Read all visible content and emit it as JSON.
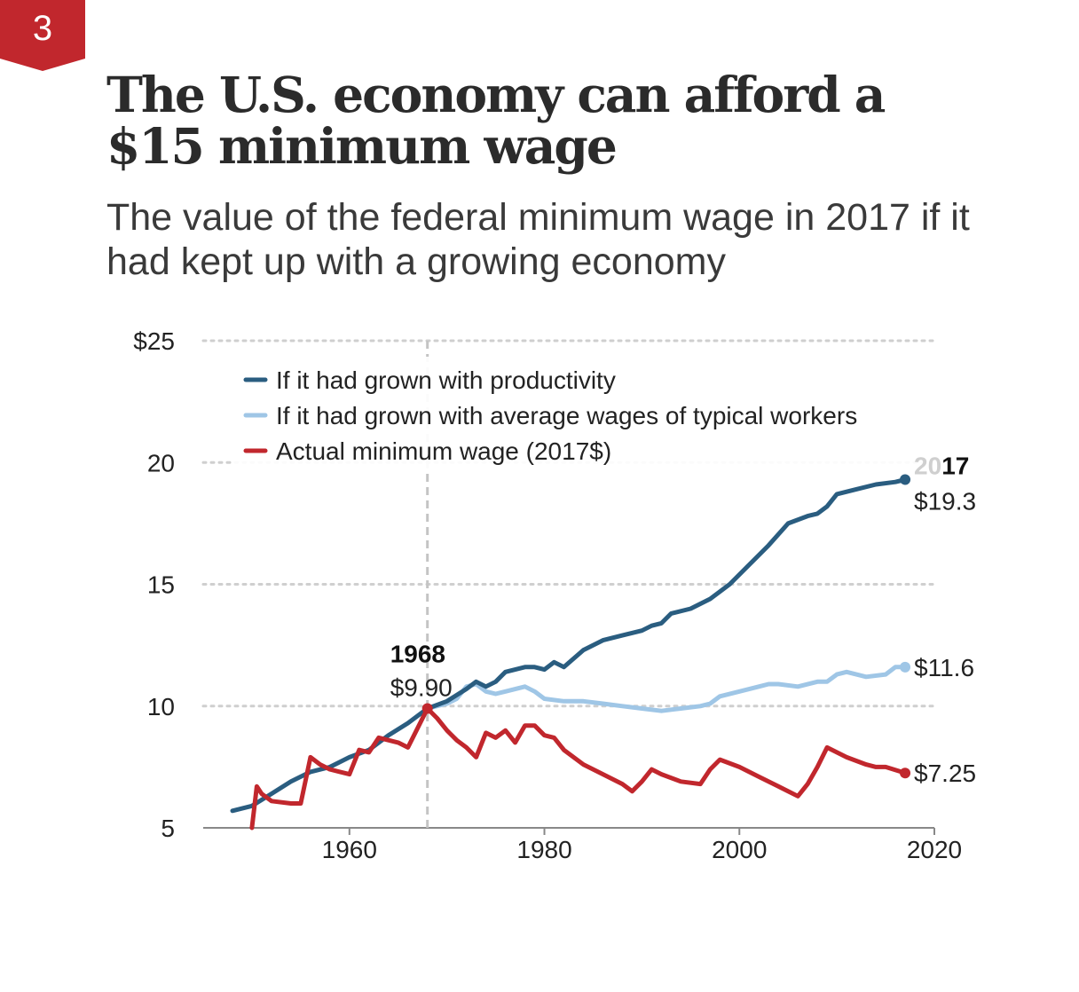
{
  "badge": {
    "number": "3",
    "color": "#c1272d"
  },
  "header": {
    "title": "The U.S. economy can afford a $15 minimum wage",
    "subtitle": "The value of the federal minimum wage in 2017 if it had kept up with a growing economy"
  },
  "chart_data": {
    "type": "line",
    "title": "The U.S. economy can afford a $15 minimum wage",
    "subtitle": "The value of the federal minimum wage in 2017 if it had kept up with a growing economy",
    "xlabel": "",
    "ylabel": "",
    "xlim": [
      1945,
      2020
    ],
    "ylim": [
      5,
      25
    ],
    "grid": "horizontal dotted",
    "legend_position": "top-left",
    "y_ticks": [
      {
        "value": 25,
        "label": "$25"
      },
      {
        "value": 20,
        "label": "20"
      },
      {
        "value": 15,
        "label": "15"
      },
      {
        "value": 10,
        "label": "10"
      },
      {
        "value": 5,
        "label": "5"
      }
    ],
    "x_ticks": [
      {
        "value": 1960,
        "label": "1960"
      },
      {
        "value": 1980,
        "label": "1980"
      },
      {
        "value": 2000,
        "label": "2000"
      },
      {
        "value": 2020,
        "label": "2020"
      }
    ],
    "series": [
      {
        "name": "If it had grown with productivity",
        "color": "#2a5d80",
        "end_label": "$19.3",
        "points": [
          [
            1948,
            5.7
          ],
          [
            1950,
            5.9
          ],
          [
            1952,
            6.4
          ],
          [
            1954,
            6.9
          ],
          [
            1956,
            7.3
          ],
          [
            1958,
            7.5
          ],
          [
            1960,
            7.9
          ],
          [
            1962,
            8.2
          ],
          [
            1964,
            8.8
          ],
          [
            1966,
            9.3
          ],
          [
            1968,
            9.9
          ],
          [
            1970,
            10.2
          ],
          [
            1972,
            10.7
          ],
          [
            1973,
            11.0
          ],
          [
            1974,
            10.8
          ],
          [
            1975,
            11.0
          ],
          [
            1976,
            11.4
          ],
          [
            1978,
            11.6
          ],
          [
            1979,
            11.6
          ],
          [
            1980,
            11.5
          ],
          [
            1981,
            11.8
          ],
          [
            1982,
            11.6
          ],
          [
            1984,
            12.3
          ],
          [
            1986,
            12.7
          ],
          [
            1988,
            12.9
          ],
          [
            1990,
            13.1
          ],
          [
            1991,
            13.3
          ],
          [
            1992,
            13.4
          ],
          [
            1993,
            13.8
          ],
          [
            1995,
            14.0
          ],
          [
            1997,
            14.4
          ],
          [
            1999,
            15.0
          ],
          [
            2001,
            15.8
          ],
          [
            2003,
            16.6
          ],
          [
            2005,
            17.5
          ],
          [
            2007,
            17.8
          ],
          [
            2008,
            17.9
          ],
          [
            2009,
            18.2
          ],
          [
            2010,
            18.7
          ],
          [
            2012,
            18.9
          ],
          [
            2014,
            19.1
          ],
          [
            2016,
            19.2
          ],
          [
            2017,
            19.3
          ]
        ]
      },
      {
        "name": "If it had grown with average wages of typical workers",
        "color": "#9fc6e6",
        "end_label": "$11.6",
        "points": [
          [
            1968,
            9.9
          ],
          [
            1970,
            10.1
          ],
          [
            1971,
            10.3
          ],
          [
            1972,
            10.8
          ],
          [
            1973,
            10.9
          ],
          [
            1974,
            10.6
          ],
          [
            1975,
            10.5
          ],
          [
            1976,
            10.6
          ],
          [
            1978,
            10.8
          ],
          [
            1979,
            10.6
          ],
          [
            1980,
            10.3
          ],
          [
            1982,
            10.2
          ],
          [
            1984,
            10.2
          ],
          [
            1986,
            10.1
          ],
          [
            1988,
            10.0
          ],
          [
            1990,
            9.9
          ],
          [
            1992,
            9.8
          ],
          [
            1994,
            9.9
          ],
          [
            1996,
            10.0
          ],
          [
            1997,
            10.1
          ],
          [
            1998,
            10.4
          ],
          [
            2000,
            10.6
          ],
          [
            2002,
            10.8
          ],
          [
            2003,
            10.9
          ],
          [
            2004,
            10.9
          ],
          [
            2006,
            10.8
          ],
          [
            2008,
            11.0
          ],
          [
            2009,
            11.0
          ],
          [
            2010,
            11.3
          ],
          [
            2011,
            11.4
          ],
          [
            2013,
            11.2
          ],
          [
            2015,
            11.3
          ],
          [
            2016,
            11.6
          ],
          [
            2017,
            11.6
          ]
        ]
      },
      {
        "name": "Actual minimum wage (2017$)",
        "color": "#c1272d",
        "end_label": "$7.25",
        "points": [
          [
            1950,
            5.0
          ],
          [
            1950.5,
            6.7
          ],
          [
            1951,
            6.4
          ],
          [
            1952,
            6.1
          ],
          [
            1954,
            6.0
          ],
          [
            1955,
            6.0
          ],
          [
            1956,
            7.9
          ],
          [
            1957,
            7.6
          ],
          [
            1958,
            7.4
          ],
          [
            1960,
            7.2
          ],
          [
            1961,
            8.2
          ],
          [
            1962,
            8.1
          ],
          [
            1963,
            8.7
          ],
          [
            1964,
            8.6
          ],
          [
            1965,
            8.5
          ],
          [
            1966,
            8.3
          ],
          [
            1967,
            9.1
          ],
          [
            1968,
            9.9
          ],
          [
            1969,
            9.5
          ],
          [
            1970,
            9.0
          ],
          [
            1971,
            8.6
          ],
          [
            1972,
            8.3
          ],
          [
            1973,
            7.9
          ],
          [
            1974,
            8.9
          ],
          [
            1975,
            8.7
          ],
          [
            1976,
            9.0
          ],
          [
            1977,
            8.5
          ],
          [
            1978,
            9.2
          ],
          [
            1979,
            9.2
          ],
          [
            1980,
            8.8
          ],
          [
            1981,
            8.7
          ],
          [
            1982,
            8.2
          ],
          [
            1984,
            7.6
          ],
          [
            1986,
            7.2
          ],
          [
            1988,
            6.8
          ],
          [
            1989,
            6.5
          ],
          [
            1990,
            6.9
          ],
          [
            1991,
            7.4
          ],
          [
            1992,
            7.2
          ],
          [
            1994,
            6.9
          ],
          [
            1996,
            6.8
          ],
          [
            1997,
            7.4
          ],
          [
            1998,
            7.8
          ],
          [
            2000,
            7.5
          ],
          [
            2002,
            7.1
          ],
          [
            2004,
            6.7
          ],
          [
            2006,
            6.3
          ],
          [
            2007,
            6.8
          ],
          [
            2008,
            7.5
          ],
          [
            2009,
            8.3
          ],
          [
            2010,
            8.1
          ],
          [
            2011,
            7.9
          ],
          [
            2013,
            7.6
          ],
          [
            2014,
            7.5
          ],
          [
            2015,
            7.5
          ],
          [
            2017,
            7.25
          ]
        ]
      }
    ],
    "annotations": [
      {
        "id": "1968",
        "year_label": "1968",
        "value_label": "$9.90",
        "x": 1968,
        "y": 9.9
      },
      {
        "id": "2017",
        "year_label": "2017",
        "x": 2017,
        "y": 19.3
      }
    ]
  }
}
